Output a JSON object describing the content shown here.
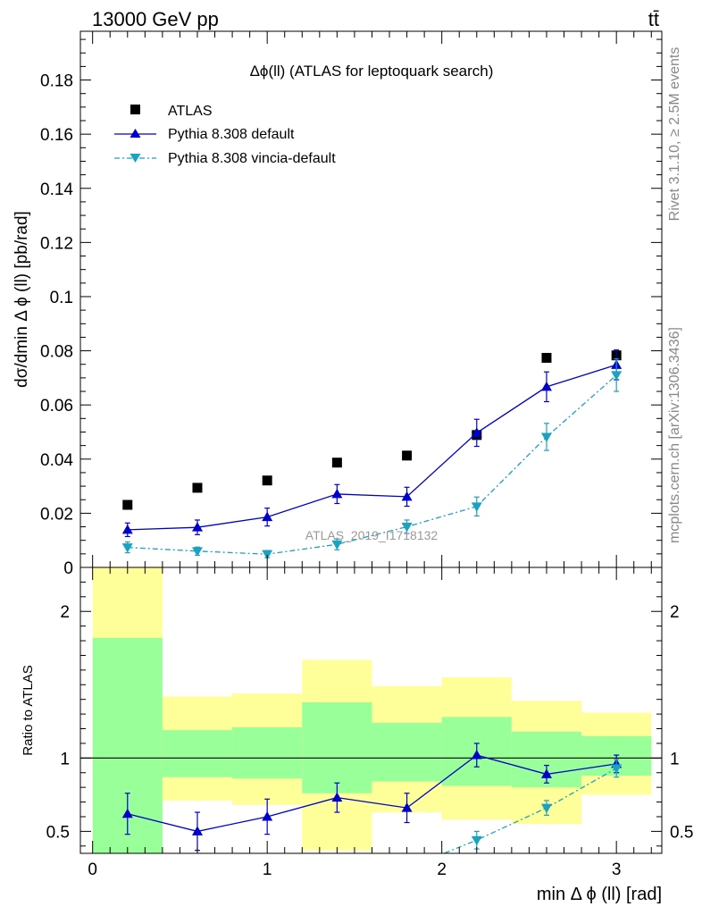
{
  "header": {
    "left": "13000 GeV pp",
    "right": "tt̄"
  },
  "side_labels": {
    "rivet": "Rivet 3.1.10, ≥ 2.5M events",
    "mcplots": "mcplots.cern.ch [arXiv:1306.3436]"
  },
  "watermark": "ATLAS_2019_I1718132",
  "chart_data": [
    {
      "type": "scatter",
      "title": "Δϕ(ll) (ATLAS for leptoquark search)",
      "xlabel": "min Δ ϕ (ll) [rad]",
      "ylabel": "dσ/dmin Δ ϕ (ll) [pb/rad]",
      "xlim": [
        -0.07,
        3.26
      ],
      "ylim": [
        0,
        0.198
      ],
      "yticks": [
        {
          "v": 0,
          "label": "0"
        },
        {
          "v": 0.02,
          "label": "0.02"
        },
        {
          "v": 0.04,
          "label": "0.04"
        },
        {
          "v": 0.06,
          "label": "0.06"
        },
        {
          "v": 0.08,
          "label": "0.08"
        },
        {
          "v": 0.1,
          "label": "0.1"
        },
        {
          "v": 0.12,
          "label": "0.12"
        },
        {
          "v": 0.14,
          "label": "0.14"
        },
        {
          "v": 0.16,
          "label": "0.16"
        },
        {
          "v": 0.18,
          "label": "0.18"
        }
      ],
      "legend_position": "top-left",
      "series": [
        {
          "name": "ATLAS",
          "style": "markers",
          "marker": "square",
          "color": "#000000",
          "x": [
            0.2,
            0.6,
            1.0,
            1.4,
            1.8,
            2.2,
            2.6,
            3.0
          ],
          "y": [
            0.0231,
            0.0294,
            0.0321,
            0.0387,
            0.0413,
            0.0489,
            0.0774,
            0.0783
          ]
        },
        {
          "name": "Pythia 8.308 default",
          "style": "solid",
          "marker": "triangle-up",
          "color": "#0000cc",
          "x": [
            0.2,
            0.6,
            1.0,
            1.4,
            1.8,
            2.2,
            2.6,
            3.0
          ],
          "y": [
            0.0139,
            0.0148,
            0.0186,
            0.0271,
            0.0261,
            0.0497,
            0.0667,
            0.0748
          ],
          "err": [
            0.0025,
            0.0027,
            0.0033,
            0.0035,
            0.0035,
            0.005,
            0.0055,
            0.0055
          ]
        },
        {
          "name": "Pythia 8.308 vincia-default",
          "style": "dashdot",
          "marker": "triangle-down",
          "color": "#1aa2c0",
          "x": [
            0.2,
            0.6,
            1.0,
            1.4,
            1.8,
            2.2,
            2.6,
            3.0
          ],
          "y": [
            0.0074,
            0.006,
            0.0049,
            0.0085,
            0.015,
            0.0225,
            0.0482,
            0.071
          ],
          "err": [
            0.002,
            0.0015,
            0.0013,
            0.002,
            0.0025,
            0.0035,
            0.005,
            0.006
          ]
        }
      ]
    },
    {
      "type": "scatter",
      "xlabel": "min Δ ϕ (ll) [rad]",
      "ylabel": "Ratio to ATLAS",
      "xlim": [
        -0.07,
        3.26
      ],
      "ylim": [
        0.35,
        2.3
      ],
      "xticks": [
        {
          "v": 0,
          "label": "0"
        },
        {
          "v": 1,
          "label": "1"
        },
        {
          "v": 2,
          "label": "2"
        },
        {
          "v": 3,
          "label": "3"
        }
      ],
      "yticks": [
        {
          "v": 0.5,
          "label": "0.5"
        },
        {
          "v": 1,
          "label": "1"
        },
        {
          "v": 2,
          "label": "2"
        }
      ],
      "reference_line": 1,
      "bands": {
        "edges": [
          0,
          0.4,
          0.8,
          1.2,
          1.6,
          2.0,
          2.4,
          2.8,
          3.2
        ],
        "outer_color": "#ffff99",
        "inner_color": "#99ff99",
        "outer_lo": [
          0.35,
          0.71,
          0.68,
          0.37,
          0.63,
          0.58,
          0.55,
          0.75,
          0.8
        ],
        "outer_hi": [
          2.3,
          1.42,
          1.44,
          1.67,
          1.49,
          1.55,
          1.39,
          1.31,
          1.31
        ],
        "inner_lo": [
          0.35,
          0.87,
          0.86,
          0.76,
          0.84,
          0.81,
          0.8,
          0.88,
          0.9
        ],
        "inner_hi": [
          1.82,
          1.19,
          1.21,
          1.38,
          1.24,
          1.28,
          1.18,
          1.15,
          1.15
        ]
      },
      "series": [
        {
          "name": "Pythia 8.308 default",
          "style": "solid",
          "marker": "triangle-up",
          "color": "#0000cc",
          "x": [
            0.2,
            0.6,
            1.0,
            1.4,
            1.8,
            2.2,
            2.6,
            3.0
          ],
          "y": [
            0.62,
            0.5,
            0.6,
            0.73,
            0.66,
            1.02,
            0.89,
            0.96
          ],
          "err": [
            0.14,
            0.13,
            0.12,
            0.1,
            0.1,
            0.08,
            0.06,
            0.06
          ]
        },
        {
          "name": "Pythia 8.308 vincia-default",
          "style": "dashdot",
          "marker": "triangle-down",
          "color": "#1aa2c0",
          "x": [
            1.95,
            2.2,
            2.6,
            3.0
          ],
          "y": [
            0.32,
            0.44,
            0.66,
            0.93
          ],
          "err": [
            0,
            0.06,
            0.05,
            0.06
          ]
        }
      ]
    }
  ]
}
